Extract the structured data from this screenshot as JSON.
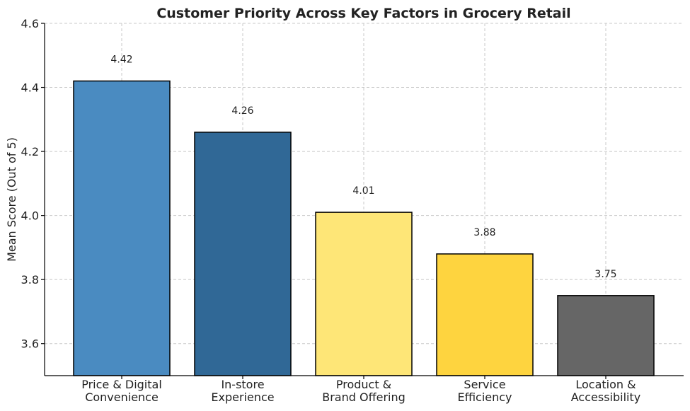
{
  "chart_data": {
    "type": "bar",
    "title": "Customer Priority Across Key Factors in Grocery Retail",
    "xlabel": "",
    "ylabel": "Mean Score (Out of 5)",
    "ylim": [
      3.5,
      4.6
    ],
    "yticks": [
      "3.6",
      "3.8",
      "4.0",
      "4.2",
      "4.4",
      "4.6"
    ],
    "grid": true,
    "categories": [
      [
        "Price & Digital",
        "Convenience"
      ],
      [
        "In-store",
        "Experience"
      ],
      [
        "Product &",
        "Brand Offering"
      ],
      [
        "Service",
        "Efficiency"
      ],
      [
        "Location &",
        "Accessibility"
      ]
    ],
    "values": [
      4.42,
      4.26,
      4.01,
      3.88,
      3.75
    ],
    "value_labels": [
      "4.42",
      "4.26",
      "4.01",
      "3.88",
      "3.75"
    ],
    "colors": [
      "#4a8bc1",
      "#306896",
      "#fee677",
      "#fed43f",
      "#666666"
    ]
  }
}
